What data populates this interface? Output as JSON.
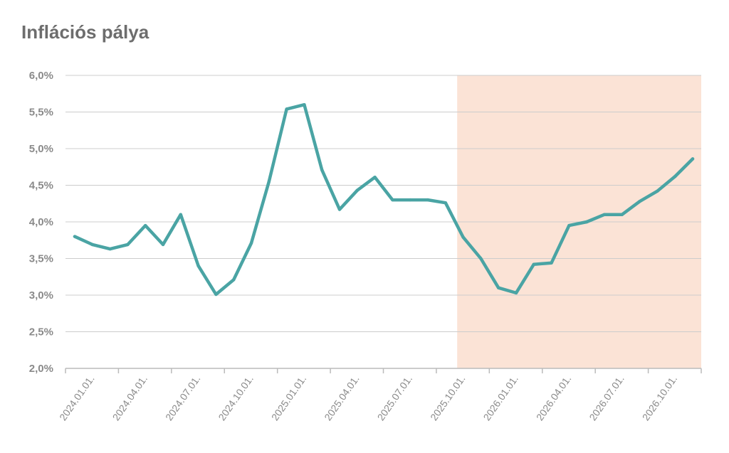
{
  "chart_data": {
    "type": "line",
    "title": "Inflációs pálya",
    "xlabel": "",
    "ylabel": "",
    "ylim": [
      2.0,
      6.0
    ],
    "y_ticks": [
      "2,0%",
      "2,5%",
      "3,0%",
      "3,5%",
      "4,0%",
      "4,5%",
      "5,0%",
      "5,5%",
      "6,0%"
    ],
    "y_tick_values": [
      2.0,
      2.5,
      3.0,
      3.5,
      4.0,
      4.5,
      5.0,
      5.5,
      6.0
    ],
    "x_ticks": [
      "2024.01.01.",
      "2024.04.01.",
      "2024.07.01.",
      "2024.10.01.",
      "2025.01.01.",
      "2025.04.01.",
      "2025.07.01.",
      "2025.10.01.",
      "2026.01.01.",
      "2026.04.01.",
      "2026.07.01.",
      "2026.10.01."
    ],
    "x": [
      "2024.01",
      "2024.02",
      "2024.03",
      "2024.04",
      "2024.05",
      "2024.06",
      "2024.07",
      "2024.08",
      "2024.09",
      "2024.10",
      "2024.11",
      "2024.12",
      "2025.01",
      "2025.02",
      "2025.03",
      "2025.04",
      "2025.05",
      "2025.06",
      "2025.07",
      "2025.08",
      "2025.09",
      "2025.10",
      "2025.11",
      "2025.12",
      "2026.01",
      "2026.02",
      "2026.03",
      "2026.04",
      "2026.05",
      "2026.06",
      "2026.07",
      "2026.08",
      "2026.09",
      "2026.10",
      "2026.11",
      "2026.12"
    ],
    "series": [
      {
        "color": "#4aa4a4",
        "values": [
          3.8,
          3.69,
          3.63,
          3.69,
          3.95,
          3.69,
          4.1,
          3.4,
          3.01,
          3.21,
          3.71,
          4.55,
          5.54,
          5.6,
          4.71,
          4.17,
          4.43,
          4.61,
          4.3,
          4.3,
          4.3,
          4.26,
          3.79,
          3.5,
          3.1,
          3.03,
          3.42,
          3.44,
          3.95,
          4.0,
          4.1,
          4.1,
          4.28,
          4.42,
          4.62,
          4.86
        ]
      }
    ],
    "forecast_shading": {
      "from": "2025.10",
      "to": "2026.12",
      "color": "#fbe3d6"
    },
    "grid": true,
    "legend": "none",
    "colors": {
      "grid": "#cccccc",
      "axis": "#bbbbbb",
      "text": "#8a8a8a",
      "title": "#6d6d6d"
    }
  }
}
